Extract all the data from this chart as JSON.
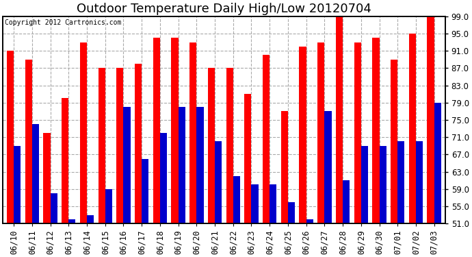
{
  "title": "Outdoor Temperature Daily High/Low 20120704",
  "copyright": "Copyright 2012 Cartronics.com",
  "dates": [
    "06/10",
    "06/11",
    "06/12",
    "06/13",
    "06/14",
    "06/15",
    "06/16",
    "06/17",
    "06/18",
    "06/19",
    "06/20",
    "06/21",
    "06/22",
    "06/23",
    "06/24",
    "06/25",
    "06/26",
    "06/27",
    "06/28",
    "06/29",
    "06/30",
    "07/01",
    "07/02",
    "07/03"
  ],
  "highs": [
    91,
    89,
    72,
    80,
    93,
    87,
    87,
    88,
    94,
    94,
    93,
    87,
    87,
    81,
    90,
    77,
    92,
    93,
    99,
    93,
    94,
    89,
    95,
    99
  ],
  "lows": [
    69,
    74,
    58,
    52,
    53,
    59,
    78,
    66,
    72,
    78,
    78,
    70,
    62,
    60,
    60,
    56,
    52,
    77,
    61,
    69,
    69,
    70,
    70,
    79
  ],
  "high_color": "#ff0000",
  "low_color": "#0000cc",
  "background_color": "#ffffff",
  "grid_color": "#aaaaaa",
  "ylim_min": 51.0,
  "ylim_max": 99.0,
  "yticks": [
    51.0,
    55.0,
    59.0,
    63.0,
    67.0,
    71.0,
    75.0,
    79.0,
    83.0,
    87.0,
    91.0,
    95.0,
    99.0
  ],
  "title_fontsize": 13,
  "tick_fontsize": 8.5,
  "copyright_fontsize": 7,
  "bar_width": 0.38
}
